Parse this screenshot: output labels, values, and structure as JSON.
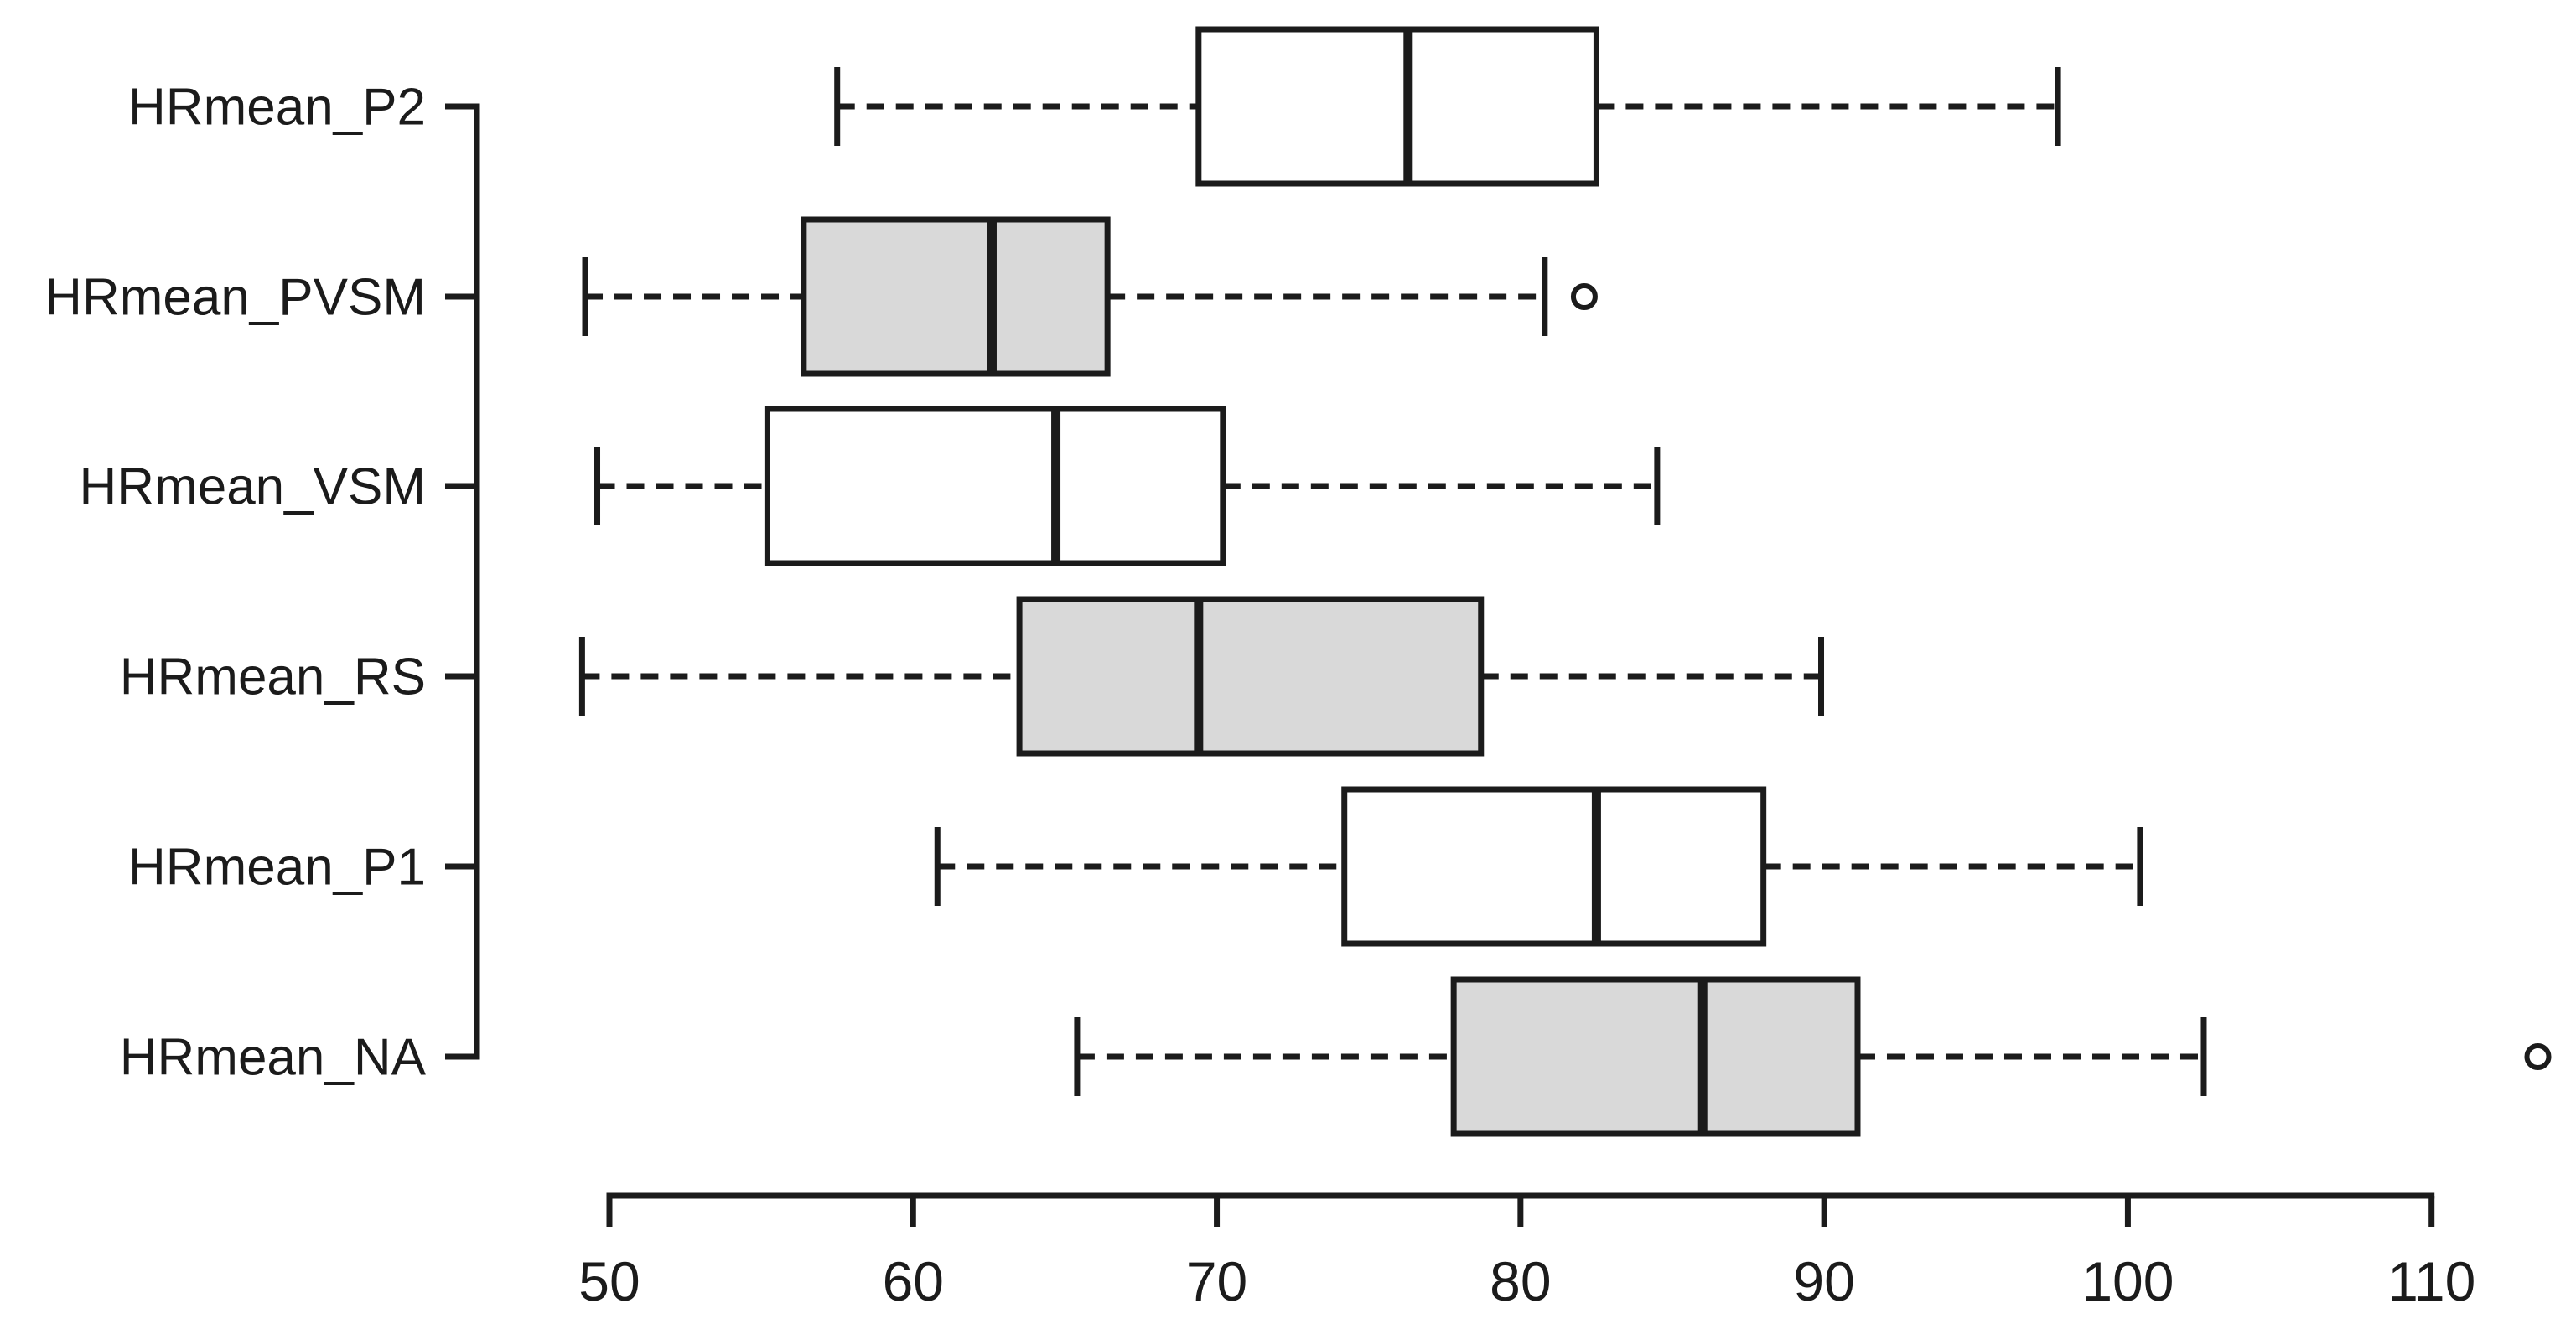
{
  "figure": {
    "background": "#ffffff",
    "line_color": "#1b1b1b",
    "fill_white": "#ffffff",
    "fill_gray": "#d9d9d9"
  },
  "chart_data": {
    "type": "boxplot",
    "orientation": "horizontal",
    "title": "",
    "xlabel": "",
    "ylabel": "",
    "grid": false,
    "legend": false,
    "x_axis": {
      "min": 50,
      "max": 110,
      "ticks": [
        50,
        60,
        70,
        80,
        90,
        100,
        110
      ]
    },
    "categories_top_to_bottom": [
      "HRmean_P2",
      "HRmean_PVSM",
      "HRmean_VSM",
      "HRmean_RS",
      "HRmean_P1",
      "HRmean_NA"
    ],
    "series": [
      {
        "name": "HRmean_P2",
        "whisker_low": 57.5,
        "q1": 69.4,
        "median": 76.3,
        "q3": 82.5,
        "whisker_high": 97.7,
        "outliers": [],
        "fill": "#ffffff"
      },
      {
        "name": "HRmean_PVSM",
        "whisker_low": 49.2,
        "q1": 56.4,
        "median": 62.6,
        "q3": 66.4,
        "whisker_high": 80.8,
        "outliers": [
          82.1
        ],
        "fill": "#d9d9d9"
      },
      {
        "name": "HRmean_VSM",
        "whisker_low": 49.6,
        "q1": 55.2,
        "median": 64.7,
        "q3": 70.2,
        "whisker_high": 84.5,
        "outliers": [],
        "fill": "#ffffff"
      },
      {
        "name": "HRmean_RS",
        "whisker_low": 49.1,
        "q1": 63.5,
        "median": 69.4,
        "q3": 78.7,
        "whisker_high": 89.9,
        "outliers": [],
        "fill": "#d9d9d9"
      },
      {
        "name": "HRmean_P1",
        "whisker_low": 60.8,
        "q1": 74.2,
        "median": 82.5,
        "q3": 88.0,
        "whisker_high": 100.4,
        "outliers": [],
        "fill": "#ffffff"
      },
      {
        "name": "HRmean_NA",
        "whisker_low": 65.4,
        "q1": 77.8,
        "median": 86.0,
        "q3": 91.1,
        "whisker_high": 102.5,
        "outliers": [
          113.5
        ],
        "fill": "#d9d9d9"
      }
    ]
  }
}
